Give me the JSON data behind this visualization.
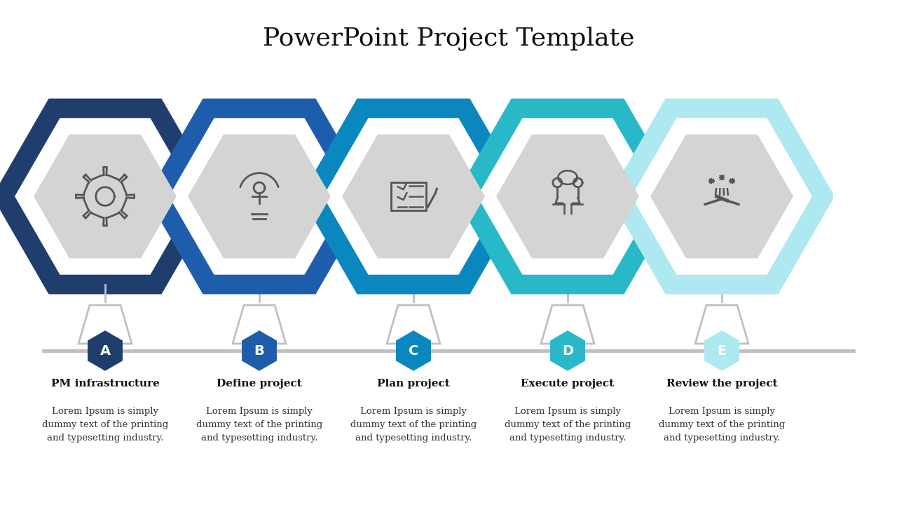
{
  "title": "PowerPoint Project Template",
  "title_fontsize": 26,
  "background_color": "#ffffff",
  "steps": [
    {
      "label": "A",
      "title": "PM infrastructure",
      "color": "#1f3e6e"
    },
    {
      "label": "B",
      "title": "Define project",
      "color": "#1e5dab"
    },
    {
      "label": "C",
      "title": "Plan project",
      "color": "#0b87c0"
    },
    {
      "label": "D",
      "title": "Execute project",
      "color": "#29b8c8"
    },
    {
      "label": "E",
      "title": "Review the project",
      "color": "#aee8f0"
    }
  ],
  "body_text": "Lorem Ipsum is simply\ndummy text of the printing\nand typesetting industry.",
  "hex_border_color": "#d9d9d9",
  "hex_fill_inner": "#d4d4d4",
  "hex_lw": 18,
  "n_steps": 5,
  "title_font": "DejaVu Serif",
  "body_font": "DejaVu Serif",
  "icon_color": "#555555"
}
